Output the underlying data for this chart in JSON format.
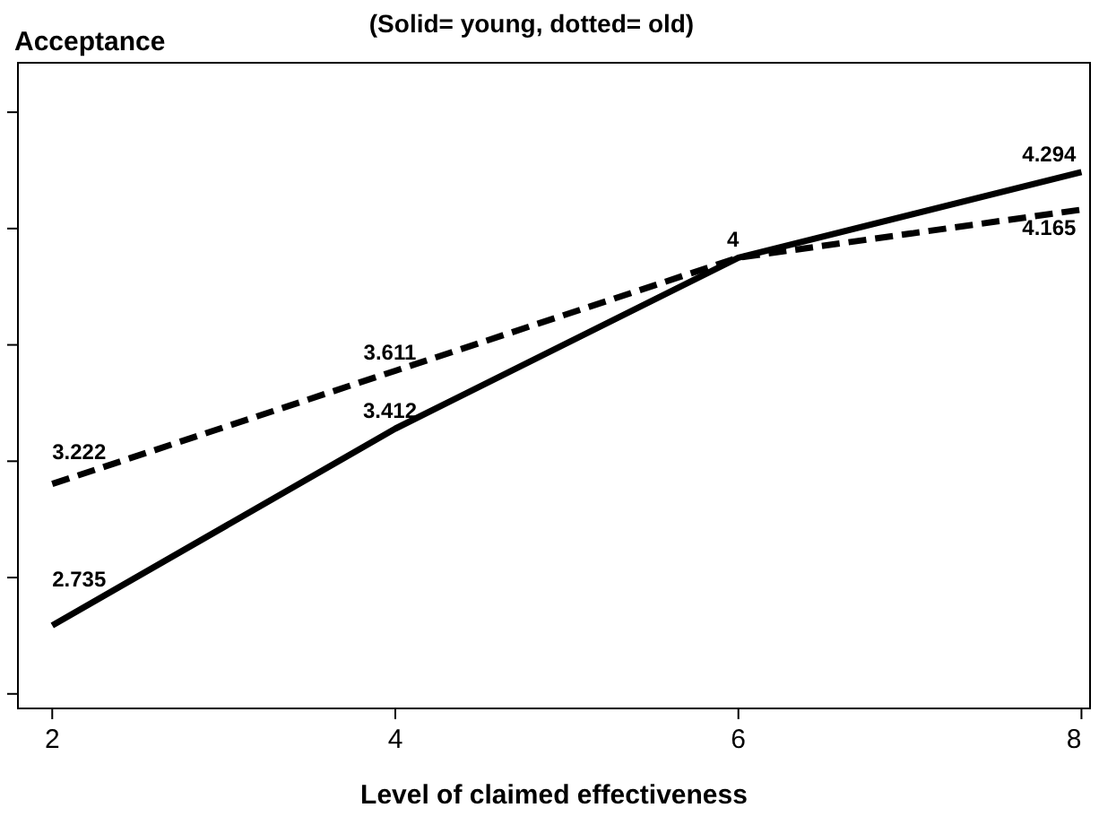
{
  "chart_data": {
    "type": "line",
    "title": "(Solid= young, dotted= old)",
    "xlabel": "Level of claimed effectiveness",
    "ylabel": "Acceptance",
    "x": [
      2,
      4,
      6,
      8
    ],
    "series": [
      {
        "color": "#000000",
        "line_style": "solid",
        "values": [
          2.735,
          3.412,
          4,
          4.294
        ],
        "value_labels": [
          "2.735",
          "3.412",
          "4",
          "4.294"
        ]
      },
      {
        "color": "#000000",
        "line_style": "dashed",
        "values": [
          3.222,
          3.611,
          4,
          4.165
        ],
        "value_labels": [
          "3.222",
          "3.611",
          null,
          "4.165"
        ]
      }
    ],
    "xlim": [
      1.8,
      8.05
    ],
    "xticks": [
      2,
      4,
      6,
      8
    ],
    "ylim": [
      2.45,
      4.67
    ],
    "yticks": [
      {
        "value": 2.5,
        "label": null
      },
      {
        "value": 2.9,
        "label": null
      },
      {
        "value": 3.3,
        "label": null
      },
      {
        "value": 3.7,
        "label": null
      },
      {
        "value": 4.1,
        "label": null
      },
      {
        "value": 4.5,
        "label": null
      }
    ],
    "tick_labels": "x",
    "grid": false,
    "marker": "none"
  }
}
